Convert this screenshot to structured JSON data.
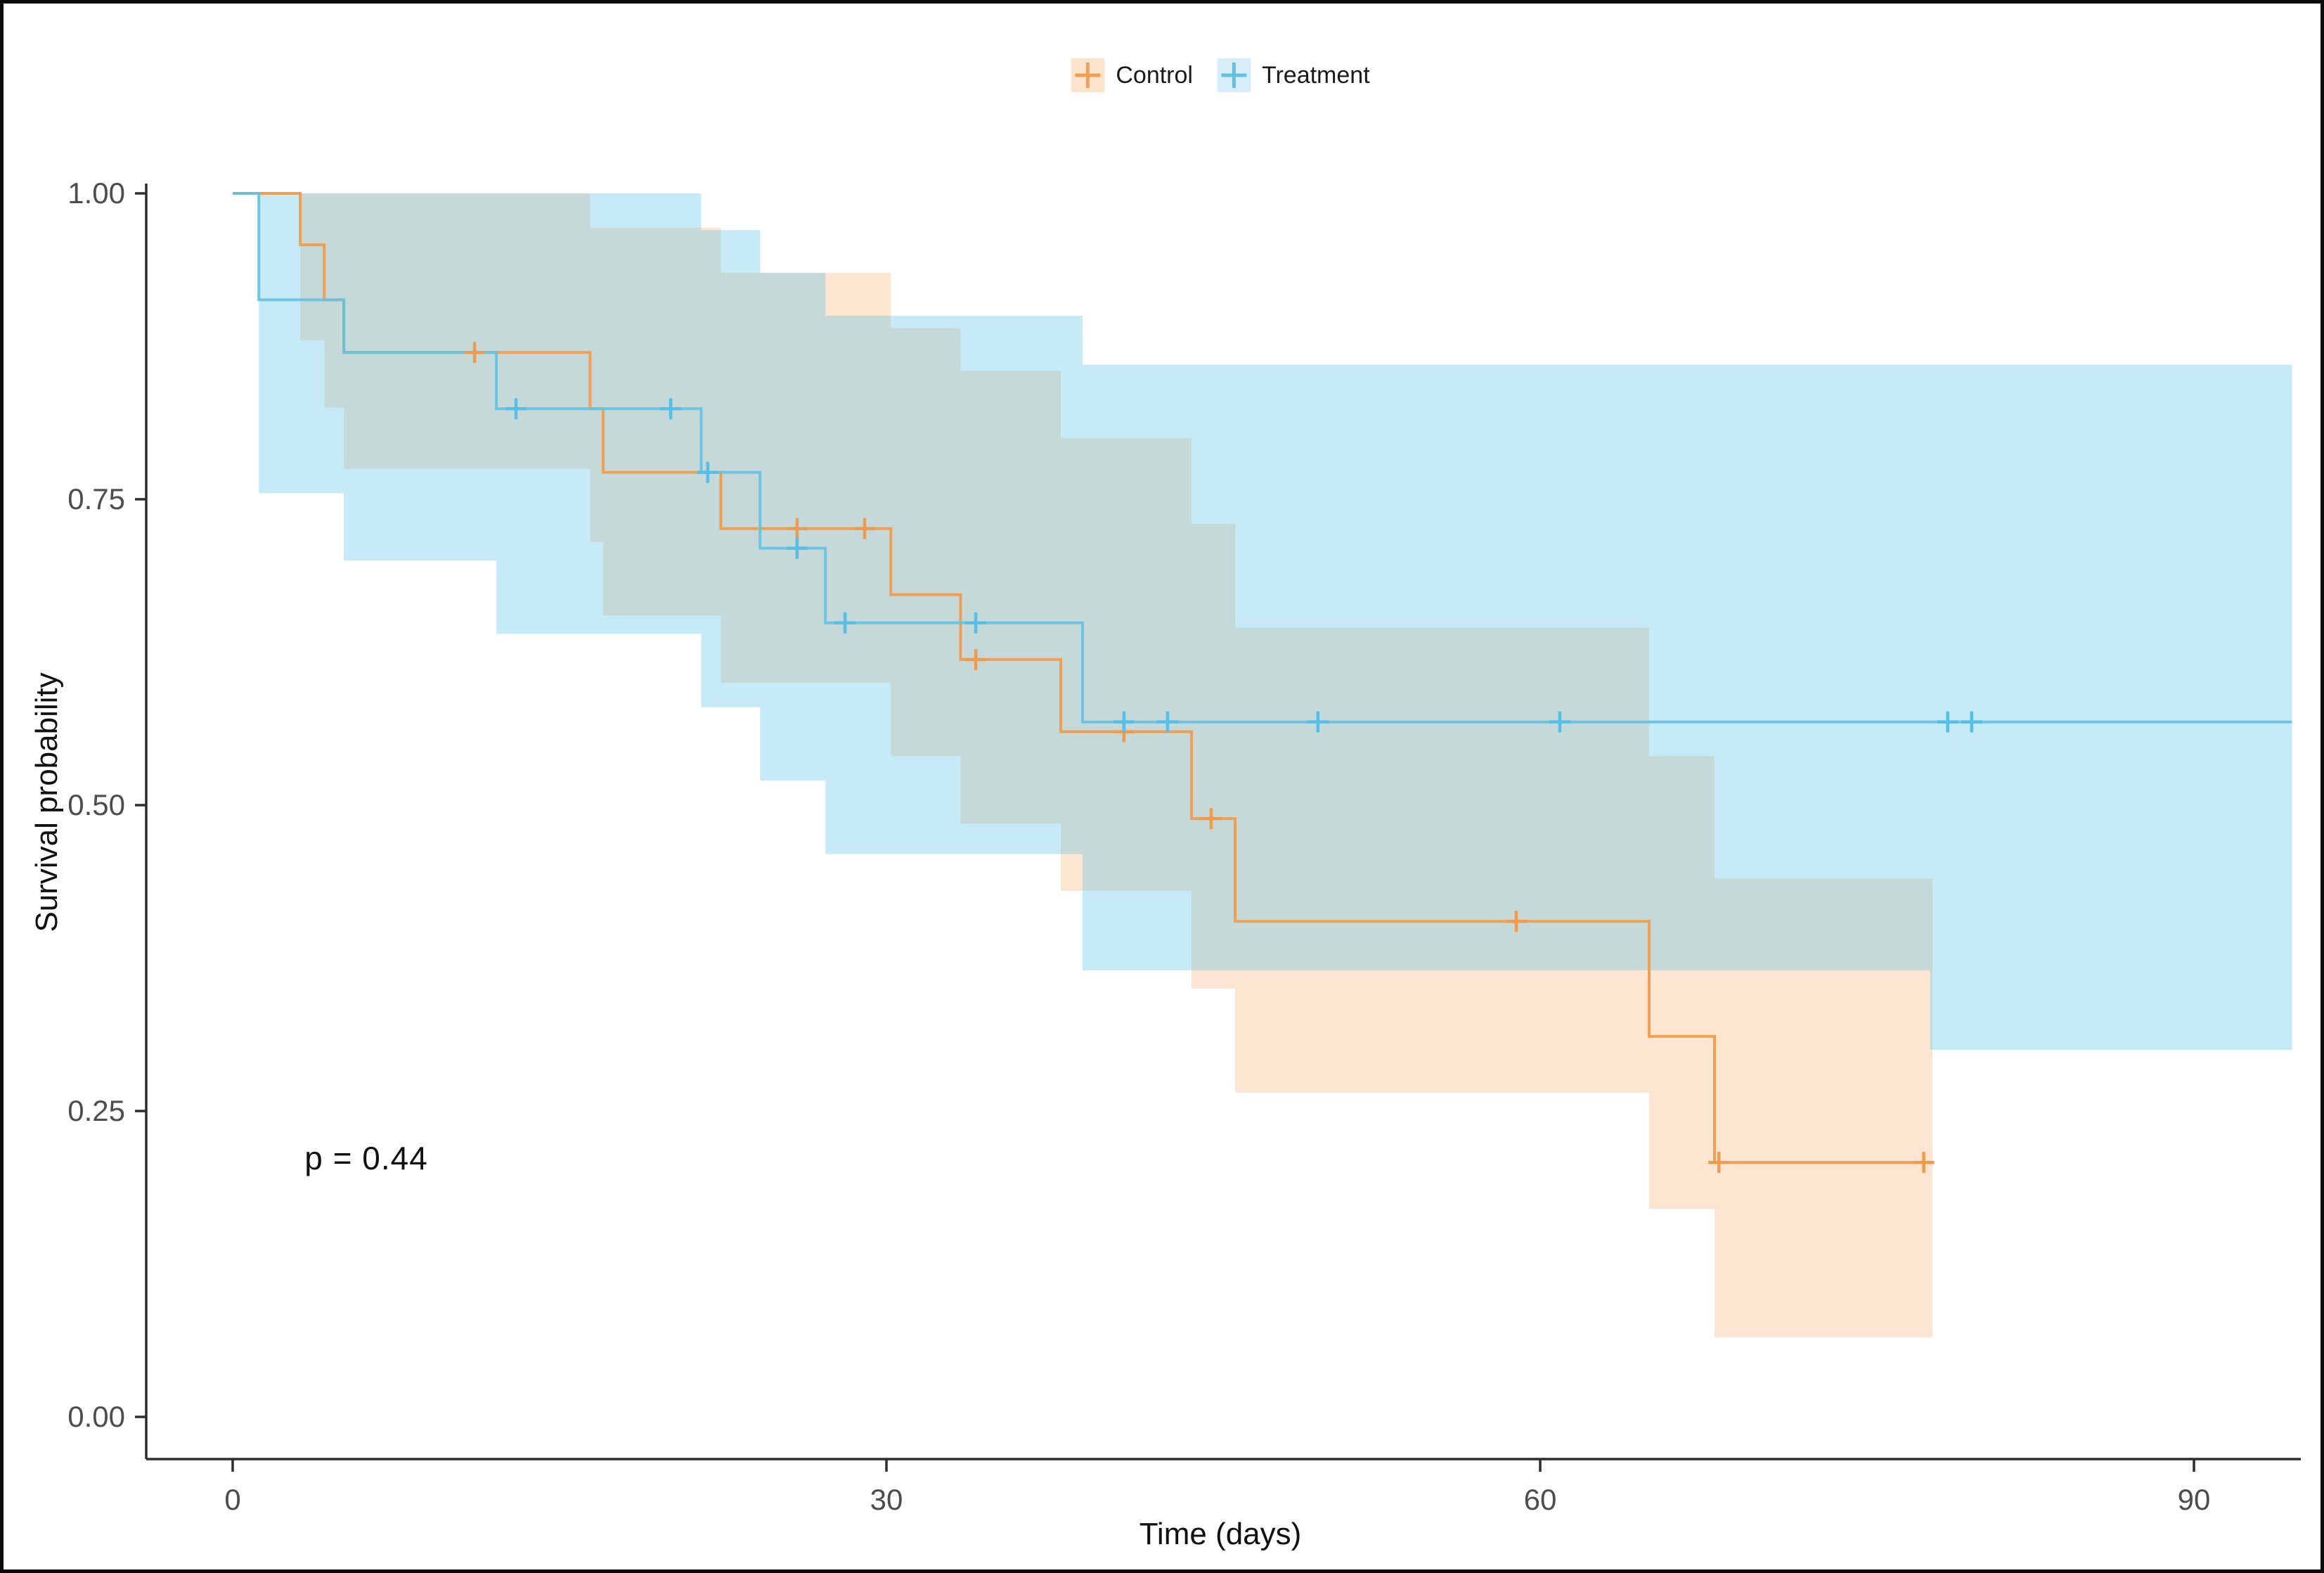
{
  "chart_data": {
    "type": "line",
    "subtype": "kaplan-meier-step",
    "title": "",
    "xlabel": "Time (days)",
    "ylabel": "Survival probability",
    "xlim": [
      0,
      95
    ],
    "ylim": [
      0,
      1
    ],
    "grid": false,
    "legend_position": "top-center",
    "x_ticks": [
      {
        "value": 0,
        "label": "0"
      },
      {
        "value": 30,
        "label": "30"
      },
      {
        "value": 60,
        "label": "60"
      },
      {
        "value": 90,
        "label": "90"
      }
    ],
    "y_ticks": [
      {
        "value": 0.0,
        "label": "0.00"
      },
      {
        "value": 0.25,
        "label": "0.25"
      },
      {
        "value": 0.5,
        "label": "0.50"
      },
      {
        "value": 0.75,
        "label": "0.75"
      },
      {
        "value": 1.0,
        "label": "1.00"
      }
    ],
    "annotation": {
      "text": "p = 0.44",
      "x_day": 3.3,
      "y_prob": 0.21
    },
    "series": [
      {
        "name": "Control",
        "line_color": "#F0A055",
        "censor_color": "#F09A4E",
        "ribbon_fill": "rgba(243,157,80,0.26)",
        "legend_key_fill": "#FBE3CC",
        "end_day": 78,
        "survival_knots": [
          [
            0,
            1.0
          ],
          [
            3.1,
            0.958
          ],
          [
            4.2,
            0.913
          ],
          [
            5.1,
            0.87
          ],
          [
            16.4,
            0.824
          ],
          [
            17.0,
            0.772
          ],
          [
            22.4,
            0.726
          ],
          [
            30.2,
            0.672
          ],
          [
            33.4,
            0.619
          ],
          [
            38.0,
            0.56
          ],
          [
            44.0,
            0.489
          ],
          [
            46.0,
            0.405
          ],
          [
            65.0,
            0.311
          ],
          [
            68.0,
            0.208
          ]
        ],
        "censor_marks": [
          [
            11.1,
            0.87
          ],
          [
            25.9,
            0.726
          ],
          [
            29.0,
            0.726
          ],
          [
            34.1,
            0.619
          ],
          [
            40.9,
            0.56
          ],
          [
            44.9,
            0.489
          ],
          [
            58.9,
            0.405
          ],
          [
            68.2,
            0.208
          ],
          [
            77.6,
            0.208
          ]
        ],
        "ci_upper_knots": [
          [
            3.1,
            1.0
          ],
          [
            16.4,
            0.972
          ],
          [
            22.4,
            0.935
          ],
          [
            30.2,
            0.89
          ],
          [
            33.4,
            0.855
          ],
          [
            38.0,
            0.8
          ],
          [
            44.0,
            0.73
          ],
          [
            46.0,
            0.645
          ],
          [
            65.0,
            0.54
          ],
          [
            68.0,
            0.44
          ]
        ],
        "ci_lower_knots": [
          [
            3.1,
            0.88
          ],
          [
            4.2,
            0.825
          ],
          [
            5.1,
            0.775
          ],
          [
            16.4,
            0.715
          ],
          [
            17.0,
            0.655
          ],
          [
            22.4,
            0.6
          ],
          [
            30.2,
            0.54
          ],
          [
            33.4,
            0.485
          ],
          [
            38.0,
            0.43
          ],
          [
            44.0,
            0.35
          ],
          [
            46.0,
            0.265
          ],
          [
            65.0,
            0.17
          ],
          [
            68.0,
            0.065
          ]
        ]
      },
      {
        "name": "Treatment",
        "line_color": "#62C1E2",
        "censor_color": "#57BEE6",
        "ribbon_fill": "rgba(85,190,230,0.33)",
        "legend_key_fill": "#D6EEF8",
        "end_day": 94.5,
        "survival_knots": [
          [
            0,
            1.0
          ],
          [
            1.2,
            0.913
          ],
          [
            5.1,
            0.87
          ],
          [
            12.1,
            0.824
          ],
          [
            21.5,
            0.772
          ],
          [
            24.2,
            0.71
          ],
          [
            27.2,
            0.649
          ],
          [
            39.0,
            0.568
          ]
        ],
        "censor_marks": [
          [
            13.0,
            0.824
          ],
          [
            20.1,
            0.824
          ],
          [
            21.8,
            0.772
          ],
          [
            25.9,
            0.71
          ],
          [
            28.1,
            0.649
          ],
          [
            34.1,
            0.649
          ],
          [
            40.9,
            0.568
          ],
          [
            42.9,
            0.568
          ],
          [
            49.8,
            0.568
          ],
          [
            60.9,
            0.568
          ],
          [
            78.7,
            0.568
          ],
          [
            79.8,
            0.568
          ]
        ],
        "ci_upper_knots": [
          [
            1.2,
            1.0
          ],
          [
            21.5,
            0.97
          ],
          [
            24.2,
            0.935
          ],
          [
            27.2,
            0.9
          ],
          [
            39.0,
            0.86
          ]
        ],
        "ci_lower_knots": [
          [
            1.2,
            0.755
          ],
          [
            5.1,
            0.7
          ],
          [
            12.1,
            0.64
          ],
          [
            21.5,
            0.58
          ],
          [
            24.2,
            0.52
          ],
          [
            27.2,
            0.46
          ],
          [
            39.0,
            0.365
          ],
          [
            77.9,
            0.3
          ]
        ]
      }
    ],
    "axis": {
      "line_color": "#2e2e2e",
      "tick_label_color": "#4d4d4d"
    }
  }
}
